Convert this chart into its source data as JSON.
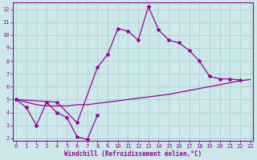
{
  "xlabel": "Windchill (Refroidissement éolien,°C)",
  "background_color": "#cce8e8",
  "grid_color": "#aacccc",
  "line_color": "#990099",
  "line1_x": [
    0,
    1,
    2,
    3,
    4,
    5,
    6,
    7,
    8
  ],
  "line1_y": [
    5.0,
    4.4,
    3.0,
    4.8,
    4.0,
    3.6,
    2.1,
    1.9,
    3.8
  ],
  "line2_x": [
    0,
    4,
    6,
    8,
    9,
    10,
    11,
    12,
    13,
    14,
    15,
    16,
    17,
    18,
    19,
    20,
    21,
    22
  ],
  "line2_y": [
    5.0,
    4.8,
    3.2,
    7.5,
    8.5,
    10.5,
    10.3,
    9.6,
    12.2,
    10.4,
    9.6,
    9.4,
    8.8,
    8.0,
    6.8,
    6.6,
    6.6,
    6.5
  ],
  "line3_x": [
    0,
    1,
    2,
    3,
    4,
    5,
    6,
    7,
    8,
    9,
    10,
    11,
    12,
    13,
    14,
    15,
    16,
    17,
    18,
    19,
    20,
    21,
    22,
    23
  ],
  "line3_y": [
    5.0,
    4.8,
    4.6,
    4.5,
    4.5,
    4.5,
    4.6,
    4.6,
    4.7,
    4.8,
    4.9,
    5.0,
    5.1,
    5.2,
    5.3,
    5.4,
    5.55,
    5.7,
    5.85,
    6.0,
    6.15,
    6.3,
    6.45,
    6.55
  ],
  "ylim_min": 1.8,
  "ylim_max": 12.5,
  "xlim_min": -0.3,
  "xlim_max": 23.3,
  "yticks": [
    2,
    3,
    4,
    5,
    6,
    7,
    8,
    9,
    10,
    11,
    12
  ],
  "xticks": [
    0,
    1,
    2,
    3,
    4,
    5,
    6,
    7,
    8,
    9,
    10,
    11,
    12,
    13,
    14,
    15,
    16,
    17,
    18,
    19,
    20,
    21,
    22,
    23
  ],
  "marker_size": 3,
  "linewidth": 0.9,
  "tick_fontsize": 5,
  "xlabel_fontsize": 5.5
}
